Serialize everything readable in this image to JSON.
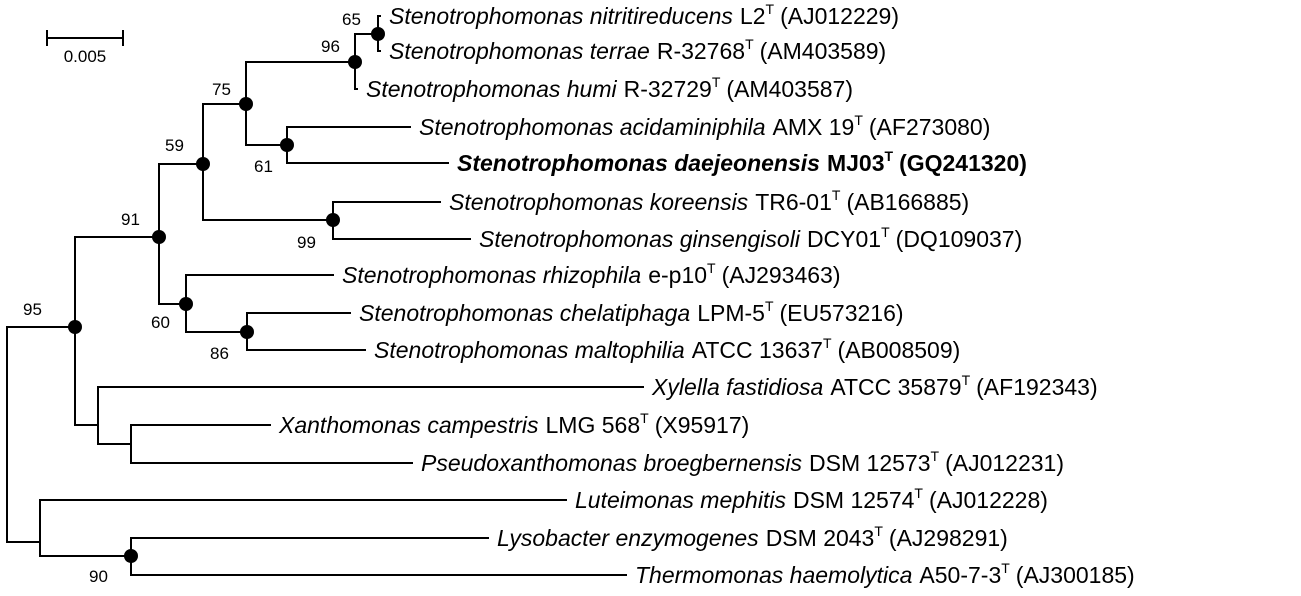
{
  "scale_bar": {
    "label": "0.005"
  },
  "taxa": [
    {
      "id": "nitritireducens",
      "genus_species": "Stenotrophomonas nitritireducens",
      "strain": "L2",
      "type_mark": "T",
      "accession": "(AJ012229)",
      "bold": false
    },
    {
      "id": "terrae",
      "genus_species": "Stenotrophomonas terrae",
      "strain": "R-32768",
      "type_mark": "T",
      "accession": "(AM403589)",
      "bold": false
    },
    {
      "id": "humi",
      "genus_species": "Stenotrophomonas humi",
      "strain": "R-32729",
      "type_mark": "T",
      "accession": "(AM403587)",
      "bold": false
    },
    {
      "id": "acidaminiphila",
      "genus_species": "Stenotrophomonas acidaminiphila",
      "strain": "AMX 19",
      "type_mark": "T",
      "accession": "(AF273080)",
      "bold": false
    },
    {
      "id": "daejeonensis",
      "genus_species": "Stenotrophomonas daejeonensis",
      "strain": "MJ03",
      "type_mark": "T",
      "accession": "(GQ241320)",
      "bold": true
    },
    {
      "id": "koreensis",
      "genus_species": "Stenotrophomonas koreensis",
      "strain": "TR6-01",
      "type_mark": "T",
      "accession": "(AB166885)",
      "bold": false
    },
    {
      "id": "ginsengisoli",
      "genus_species": "Stenotrophomonas ginsengisoli",
      "strain": "DCY01",
      "type_mark": "T",
      "accession": "(DQ109037)",
      "bold": false
    },
    {
      "id": "rhizophila",
      "genus_species": "Stenotrophomonas rhizophila",
      "strain": "e-p10",
      "type_mark": "T",
      "accession": "(AJ293463)",
      "bold": false
    },
    {
      "id": "chelatiphaga",
      "genus_species": "Stenotrophomonas chelatiphaga",
      "strain": "LPM-5",
      "type_mark": "T",
      "accession": "(EU573216)",
      "bold": false
    },
    {
      "id": "maltophilia",
      "genus_species": "Stenotrophomonas maltophilia",
      "strain": "ATCC 13637",
      "type_mark": "T",
      "accession": "(AB008509)",
      "bold": false
    },
    {
      "id": "xylella",
      "genus_species": "Xylella fastidiosa",
      "strain": "ATCC 35879",
      "type_mark": "T",
      "accession": "(AF192343)",
      "bold": false
    },
    {
      "id": "xanthomonas",
      "genus_species": "Xanthomonas campestris",
      "strain": "LMG 568",
      "type_mark": "T",
      "accession": "(X95917)",
      "bold": false
    },
    {
      "id": "pseudoxanthomonas",
      "genus_species": "Pseudoxanthomonas broegbernensis",
      "strain": "DSM 12573",
      "type_mark": "T",
      "accession": "(AJ012231)",
      "bold": false
    },
    {
      "id": "luteimonas",
      "genus_species": "Luteimonas mephitis",
      "strain": "DSM 12574",
      "type_mark": "T",
      "accession": "(AJ012228)",
      "bold": false
    },
    {
      "id": "lysobacter",
      "genus_species": "Lysobacter enzymogenes",
      "strain": "DSM 2043",
      "type_mark": "T",
      "accession": "(AJ298291)",
      "bold": false
    },
    {
      "id": "thermomonas",
      "genus_species": "Thermomonas haemolytica",
      "strain": "A50-7-3",
      "type_mark": "T",
      "accession": "(AJ300185)",
      "bold": false
    }
  ],
  "bootstrap": [
    {
      "id": "n65",
      "value": "65"
    },
    {
      "id": "n96",
      "value": "96"
    },
    {
      "id": "n75",
      "value": "75"
    },
    {
      "id": "n61",
      "value": "61"
    },
    {
      "id": "n59",
      "value": "59"
    },
    {
      "id": "n99",
      "value": "99"
    },
    {
      "id": "n91",
      "value": "91"
    },
    {
      "id": "n60",
      "value": "60"
    },
    {
      "id": "n86",
      "value": "86"
    },
    {
      "id": "n95",
      "value": "95"
    },
    {
      "id": "n90",
      "value": "90"
    }
  ]
}
